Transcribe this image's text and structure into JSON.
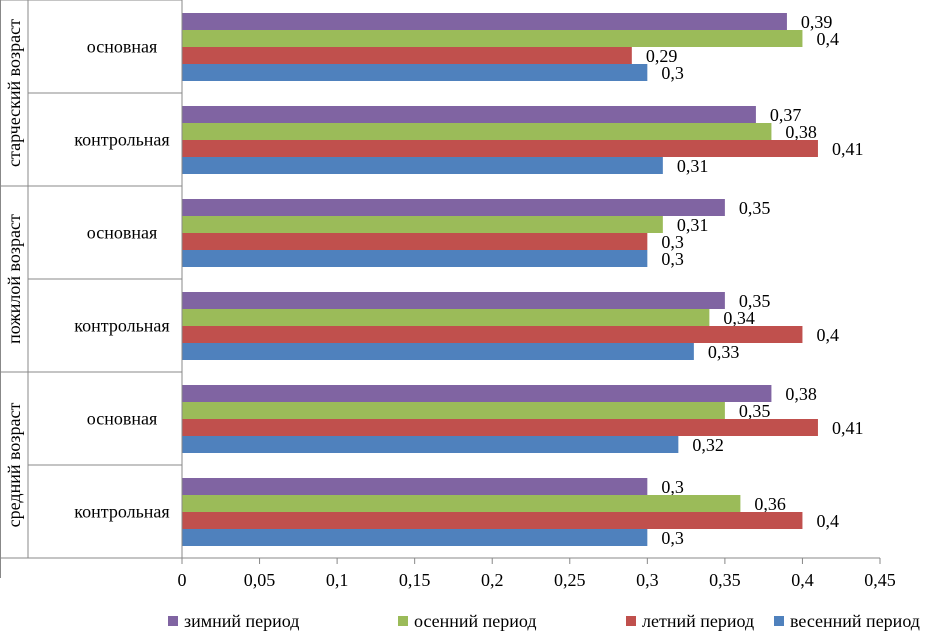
{
  "chart_data": {
    "type": "bar",
    "orientation": "horizontal",
    "title": "",
    "xlabel": "",
    "ylabel": "",
    "xlim": [
      0,
      0.45
    ],
    "x_ticks": [
      "0",
      "0,05",
      "0,1",
      "0,15",
      "0,2",
      "0,25",
      "0,3",
      "0,35",
      "0,4",
      "0,45"
    ],
    "grid": false,
    "legend_position": "bottom",
    "groups": [
      {
        "label": "старческий возраст",
        "categories": [
          "основная",
          "контрольная"
        ]
      },
      {
        "label": "пожилой возраст",
        "categories": [
          "основная",
          "контрольная"
        ]
      },
      {
        "label": "средний возраст",
        "categories": [
          "основная",
          "контрольная"
        ]
      }
    ],
    "series": [
      {
        "name": "зимний период",
        "color": "#8064A2",
        "values": [
          0.39,
          0.37,
          0.35,
          0.35,
          0.38,
          0.3
        ],
        "labels": [
          "0,39",
          "0,37",
          "0,35",
          "0,35",
          "0,38",
          "0,3"
        ]
      },
      {
        "name": "осенний период",
        "color": "#9BBB59",
        "values": [
          0.4,
          0.38,
          0.31,
          0.34,
          0.35,
          0.36
        ],
        "labels": [
          "0,4",
          "0,38",
          "0,31",
          "0,34",
          "0,35",
          "0,36"
        ]
      },
      {
        "name": "летний период",
        "color": "#C0504D",
        "values": [
          0.29,
          0.41,
          0.3,
          0.4,
          0.41,
          0.4
        ],
        "labels": [
          "0,29",
          "0,41",
          "0,3",
          "0,4",
          "0,41",
          "0,4"
        ]
      },
      {
        "name": "весенний период",
        "color": "#4F81BD",
        "values": [
          0.3,
          0.31,
          0.3,
          0.33,
          0.32,
          0.3
        ],
        "labels": [
          "0,3",
          "0,31",
          "0,3",
          "0,33",
          "0,32",
          "0,3"
        ]
      }
    ]
  }
}
